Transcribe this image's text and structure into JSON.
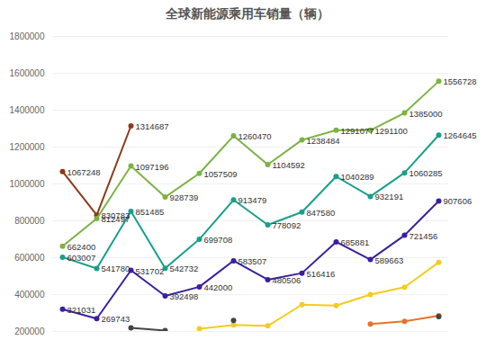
{
  "chart_data": {
    "type": "line",
    "title": "全球新能源乘用车销量（辆）",
    "categories": [
      null,
      null,
      null,
      null,
      null,
      null,
      null,
      null,
      null,
      null,
      null,
      null
    ],
    "series": [
      {
        "color": "#8b3a1c",
        "data_labels": true,
        "values": [
          1067248,
          830783,
          1314687,
          null,
          null,
          null,
          null,
          null,
          null,
          null,
          null,
          null
        ]
      },
      {
        "color": "#7cb342",
        "data_labels": true,
        "values": [
          662400,
          812497,
          1097196,
          928739,
          1057509,
          1260470,
          1104592,
          1238484,
          1291077,
          1291100,
          1385000,
          1556728
        ]
      },
      {
        "color": "#17a08c",
        "data_labels": true,
        "values": [
          603007,
          541780,
          851485,
          542732,
          699708,
          913479,
          778092,
          847580,
          1040289,
          932191,
          1060285,
          1264645
        ]
      },
      {
        "color": "#3a1f9e",
        "data_labels": true,
        "values": [
          321031,
          269743,
          531702,
          392498,
          442000,
          583507,
          480506,
          516416,
          685881,
          589663,
          721456,
          907606
        ]
      },
      {
        "color": "#f2cc1f",
        "data_labels": false,
        "values": [
          null,
          null,
          null,
          null,
          215000,
          235000,
          230000,
          345000,
          340000,
          400000,
          440000,
          575000
        ]
      },
      {
        "color": "#e8732a",
        "data_labels": false,
        "values": [
          null,
          null,
          null,
          null,
          null,
          null,
          null,
          null,
          null,
          240000,
          255000,
          285000
        ]
      },
      {
        "color": "#444444",
        "data_labels": false,
        "values": [
          null,
          null,
          220000,
          205000,
          null,
          260000,
          null,
          null,
          null,
          null,
          null,
          280000
        ]
      }
    ],
    "ylim": [
      200000,
      1800000
    ],
    "yticks": [
      200000,
      400000,
      600000,
      800000,
      1000000,
      1200000,
      1400000,
      1600000,
      1800000
    ],
    "grid": true,
    "tick_labels": "y",
    "marker": "circle",
    "line_style": "solid"
  }
}
